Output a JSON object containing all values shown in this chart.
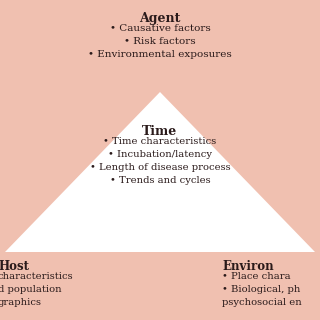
{
  "background_color": "#F0C0B0",
  "triangle_color": "#FFFFFF",
  "text_color": "#2a1a1a",
  "agent_title": "Agent",
  "agent_bullets": [
    "• Causative factors",
    "• Risk factors",
    "• Environmental exposures"
  ],
  "time_title": "Time",
  "time_bullets": [
    "• Time characteristics",
    "• Incubation/latency",
    "• Length of disease process",
    "• Trends and cycles"
  ],
  "host_title": "Host",
  "host_bullets": [
    "characteristics",
    "d population",
    "graphics"
  ],
  "environ_title": "Environ",
  "environ_bullets": [
    "• Place chara",
    "• Biological, ph",
    "psychosocial en"
  ]
}
